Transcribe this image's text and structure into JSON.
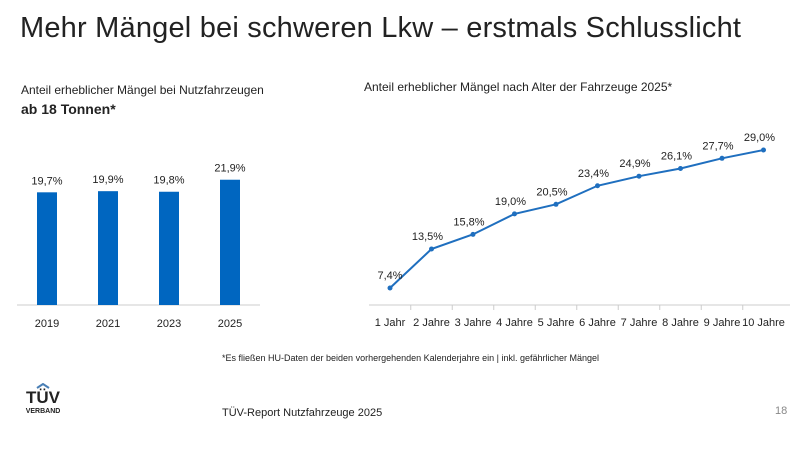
{
  "title": "Mehr Mängel bei schweren Lkw – erstmals Schlusslicht",
  "footnote": "*Es fließen HU-Daten der beiden vorhergehenden Kalenderjahre ein | inkl. gefährlicher Mängel",
  "source": "TÜV-Report Nutzfahrzeuge 2025",
  "page_number": "18",
  "logo": {
    "text": "TÜV",
    "subtext": "VERBAND"
  },
  "chart_data": [
    {
      "type": "bar",
      "title": "Anteil erheblicher Mängel bei Nutzfahrzeugen",
      "subtitle": "ab 18 Tonnen*",
      "categories": [
        "2019",
        "2021",
        "2023",
        "2025"
      ],
      "values": [
        19.7,
        19.9,
        19.8,
        21.9
      ],
      "labels": [
        "19,7%",
        "19,9%",
        "19,8%",
        "21,9%"
      ],
      "color": "#0066c0",
      "grid": false
    },
    {
      "type": "line",
      "title": "Anteil erheblicher Mängel nach Alter der Fahrzeuge 2025*",
      "categories": [
        "1 Jahr",
        "2 Jahre",
        "3 Jahre",
        "4 Jahre",
        "5 Jahre",
        "6 Jahre",
        "7 Jahre",
        "8 Jahre",
        "9 Jahre",
        "10 Jahre"
      ],
      "values": [
        7.4,
        13.5,
        15.8,
        19.0,
        20.5,
        23.4,
        24.9,
        26.1,
        27.7,
        29.0
      ],
      "labels": [
        "7,4%",
        "13,5%",
        "15,8%",
        "19,0%",
        "20,5%",
        "23,4%",
        "24,9%",
        "26,1%",
        "27,7%",
        "29,0%"
      ],
      "color": "#1f6fbf",
      "grid": false
    }
  ]
}
